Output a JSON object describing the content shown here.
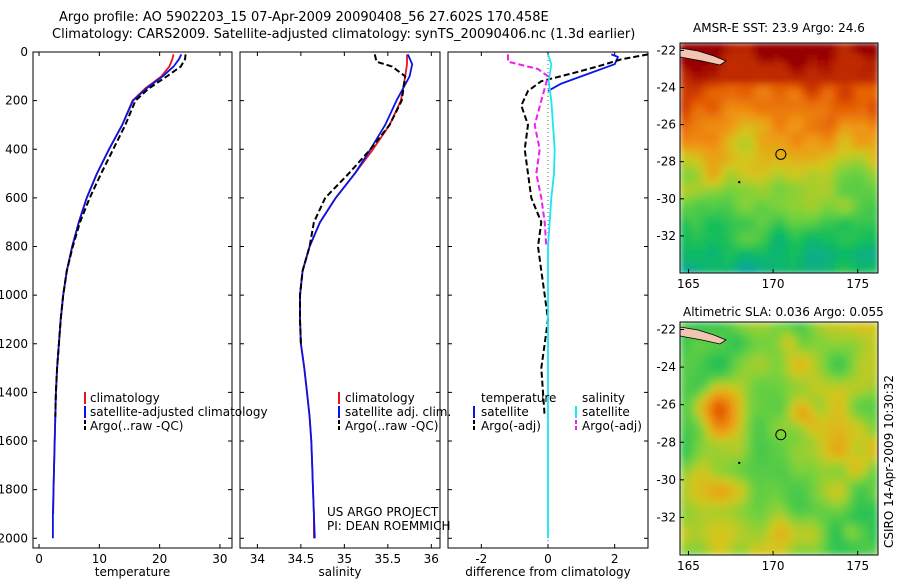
{
  "titles": {
    "line1": "Argo profile: AO 5902203_15 07-Apr-2009 20090408_56 27.602S 170.458E",
    "line2": "Climatology: CARS2009. Satellite-adjusted climatology: synTS_20090406.nc (1.3d earlier)"
  },
  "credits": {
    "project": "US ARGO PROJECT",
    "pi": "PI: DEAN ROEMMICH",
    "stamp": "CSIRO 14-Apr-2009 10:30:32"
  },
  "colors": {
    "climatology": "#e8141e",
    "satellite": "#0a14e6",
    "argo": "#000000",
    "sat_diff": "#18e6f0",
    "argo_adj_diff": "#f01ef0"
  },
  "chart_data": [
    {
      "type": "line",
      "id": "temperature",
      "xlabel": "temperature",
      "xlim": [
        -1,
        32
      ],
      "ylim": [
        2040,
        0
      ],
      "y_reversed": true,
      "xticks": [
        0,
        10,
        20,
        30
      ],
      "yticks": [
        0,
        200,
        400,
        600,
        800,
        1000,
        1200,
        1400,
        1600,
        1800,
        2000
      ],
      "legend": [
        "climatology",
        "satellite-adjusted climatology",
        "Argo(..raw -QC)"
      ],
      "series": [
        {
          "name": "climatology",
          "key": "climatology",
          "style": "solid",
          "points": [
            [
              22.3,
              10
            ],
            [
              22.1,
              30
            ],
            [
              21.6,
              60
            ],
            [
              20.3,
              100
            ],
            [
              17.6,
              150
            ],
            [
              15.5,
              200
            ],
            [
              13.8,
              300
            ],
            [
              11.6,
              400
            ],
            [
              9.6,
              500
            ],
            [
              7.9,
              600
            ],
            [
              6.6,
              700
            ],
            [
              5.5,
              800
            ],
            [
              4.6,
              900
            ],
            [
              4.0,
              1000
            ],
            [
              3.6,
              1100
            ],
            [
              3.3,
              1200
            ],
            [
              3.0,
              1300
            ],
            [
              2.8,
              1400
            ],
            [
              2.7,
              1500
            ],
            [
              2.6,
              1600
            ],
            [
              2.5,
              1700
            ],
            [
              2.4,
              1800
            ],
            [
              2.35,
              1900
            ]
          ]
        },
        {
          "name": "satellite-adjusted climatology",
          "key": "satellite",
          "style": "solid",
          "points": [
            [
              23.6,
              10
            ],
            [
              23.2,
              30
            ],
            [
              22.3,
              60
            ],
            [
              20.5,
              100
            ],
            [
              17.8,
              150
            ],
            [
              15.6,
              200
            ],
            [
              13.8,
              300
            ],
            [
              11.6,
              400
            ],
            [
              9.6,
              500
            ],
            [
              7.9,
              600
            ],
            [
              6.6,
              700
            ],
            [
              5.5,
              800
            ],
            [
              4.6,
              900
            ],
            [
              4.0,
              1000
            ],
            [
              3.6,
              1100
            ],
            [
              3.3,
              1200
            ],
            [
              3.0,
              1300
            ],
            [
              2.8,
              1400
            ],
            [
              2.7,
              1500
            ],
            [
              2.6,
              1600
            ],
            [
              2.5,
              1700
            ],
            [
              2.4,
              1800
            ],
            [
              2.3,
              1900
            ],
            [
              2.3,
              2000
            ]
          ]
        },
        {
          "name": "Argo(..raw -QC)",
          "key": "argo",
          "style": "dash",
          "points": [
            [
              24.3,
              10
            ],
            [
              24.2,
              30
            ],
            [
              23.5,
              60
            ],
            [
              21.2,
              100
            ],
            [
              18.2,
              150
            ],
            [
              16.0,
              200
            ],
            [
              14.3,
              300
            ],
            [
              12.3,
              400
            ],
            [
              10.3,
              500
            ],
            [
              8.4,
              600
            ],
            [
              6.8,
              700
            ],
            [
              5.6,
              800
            ],
            [
              4.6,
              900
            ],
            [
              4.0,
              1000
            ],
            [
              3.6,
              1100
            ],
            [
              3.3,
              1200
            ],
            [
              3.0,
              1300
            ],
            [
              2.8,
              1400
            ],
            [
              2.7,
              1500
            ]
          ]
        }
      ]
    },
    {
      "type": "line",
      "id": "salinity",
      "xlabel": "salinity",
      "xlim": [
        33.8,
        36.1
      ],
      "ylim": [
        2040,
        0
      ],
      "y_reversed": true,
      "xticks": [
        34,
        34.5,
        35,
        35.5,
        36
      ],
      "legend": [
        "climatology",
        "satellite adj. clim.",
        "Argo(..raw -QC)"
      ],
      "series": [
        {
          "name": "climatology",
          "key": "climatology",
          "style": "solid",
          "points": [
            [
              35.72,
              10
            ],
            [
              35.72,
              50
            ],
            [
              35.7,
              100
            ],
            [
              35.65,
              200
            ],
            [
              35.52,
              300
            ],
            [
              35.33,
              400
            ],
            [
              35.12,
              500
            ],
            [
              34.9,
              600
            ],
            [
              34.72,
              700
            ],
            [
              34.6,
              800
            ],
            [
              34.52,
              900
            ],
            [
              34.49,
              1000
            ],
            [
              34.49,
              1100
            ],
            [
              34.5,
              1200
            ],
            [
              34.54,
              1300
            ],
            [
              34.57,
              1400
            ],
            [
              34.6,
              1500
            ],
            [
              34.62,
              1600
            ],
            [
              34.63,
              1700
            ],
            [
              34.64,
              1800
            ],
            [
              34.65,
              1900
            ],
            [
              34.65,
              2000
            ]
          ]
        },
        {
          "name": "satellite adj. clim.",
          "key": "satellite",
          "style": "solid",
          "points": [
            [
              35.73,
              10
            ],
            [
              35.78,
              50
            ],
            [
              35.75,
              100
            ],
            [
              35.6,
              200
            ],
            [
              35.47,
              300
            ],
            [
              35.3,
              400
            ],
            [
              35.12,
              500
            ],
            [
              34.9,
              600
            ],
            [
              34.72,
              700
            ],
            [
              34.6,
              800
            ],
            [
              34.52,
              900
            ],
            [
              34.49,
              1000
            ],
            [
              34.49,
              1100
            ],
            [
              34.5,
              1200
            ],
            [
              34.54,
              1300
            ],
            [
              34.57,
              1400
            ],
            [
              34.6,
              1500
            ],
            [
              34.62,
              1600
            ],
            [
              34.63,
              1700
            ],
            [
              34.64,
              1800
            ],
            [
              34.65,
              1900
            ],
            [
              34.66,
              2000
            ]
          ]
        },
        {
          "name": "Argo(..raw -QC)",
          "key": "argo",
          "style": "dash",
          "points": [
            [
              35.35,
              10
            ],
            [
              35.37,
              40
            ],
            [
              35.55,
              60
            ],
            [
              35.7,
              100
            ],
            [
              35.66,
              200
            ],
            [
              35.52,
              300
            ],
            [
              35.3,
              400
            ],
            [
              35.05,
              500
            ],
            [
              34.78,
              600
            ],
            [
              34.65,
              700
            ],
            [
              34.6,
              800
            ],
            [
              34.52,
              900
            ],
            [
              34.49,
              1000
            ],
            [
              34.49,
              1100
            ],
            [
              34.5,
              1200
            ]
          ]
        }
      ]
    },
    {
      "type": "line",
      "id": "difference",
      "xlabel": "difference from climatology",
      "xlim": [
        -3,
        3
      ],
      "ylim": [
        2040,
        0
      ],
      "y_reversed": true,
      "xticks": [
        -2,
        0,
        2
      ],
      "legend_temperature": {
        "heading": "temperature",
        "items": [
          "satellite",
          "Argo(-adj)"
        ]
      },
      "legend_salinity": {
        "heading": "salinity",
        "items": [
          "satellite",
          "Argo(-adj)"
        ]
      },
      "series": [
        {
          "name": "satellite",
          "key": "satellite",
          "style": "solid",
          "variable": "temperature",
          "points": [
            [
              0.0,
              160
            ],
            [
              0.4,
              130
            ],
            [
              1.2,
              90
            ],
            [
              2.0,
              50
            ],
            [
              2.1,
              20
            ],
            [
              1.9,
              10
            ]
          ]
        },
        {
          "name": "Argo(-adj)",
          "key": "argo",
          "style": "dash",
          "variable": "temperature",
          "points": [
            [
              3.0,
              10
            ],
            [
              2.2,
              30
            ],
            [
              1.6,
              55
            ],
            [
              0.8,
              85
            ],
            [
              -0.2,
              120
            ],
            [
              -0.6,
              160
            ],
            [
              -0.8,
              220
            ],
            [
              -0.6,
              300
            ],
            [
              -0.7,
              400
            ],
            [
              -0.6,
              500
            ],
            [
              -0.5,
              600
            ],
            [
              -0.2,
              700
            ],
            [
              -0.3,
              800
            ],
            [
              -0.2,
              900
            ],
            [
              -0.1,
              1000
            ],
            [
              0.0,
              1100
            ],
            [
              -0.1,
              1200
            ],
            [
              -0.2,
              1300
            ],
            [
              -0.15,
              1400
            ],
            [
              -0.1,
              1500
            ]
          ]
        },
        {
          "name": "satellite",
          "key": "sat_diff",
          "style": "solid",
          "variable": "salinity",
          "points": [
            [
              0.0,
              10
            ],
            [
              0.1,
              50
            ],
            [
              0.02,
              120
            ],
            [
              0.1,
              200
            ],
            [
              0.15,
              300
            ],
            [
              0.2,
              400
            ],
            [
              0.18,
              500
            ],
            [
              0.1,
              600
            ],
            [
              0.05,
              700
            ],
            [
              0.0,
              800
            ],
            [
              0.0,
              1000
            ],
            [
              0.0,
              1200
            ],
            [
              0.0,
              1400
            ],
            [
              0.0,
              1600
            ],
            [
              0.0,
              1800
            ],
            [
              0.0,
              2000
            ]
          ]
        },
        {
          "name": "Argo(-adj)",
          "key": "argo_adj_diff",
          "style": "dash",
          "variable": "salinity",
          "points": [
            [
              -1.2,
              10
            ],
            [
              -1.2,
              40
            ],
            [
              -0.3,
              70
            ],
            [
              0.0,
              100
            ],
            [
              -0.2,
              200
            ],
            [
              -0.4,
              300
            ],
            [
              -0.25,
              400
            ],
            [
              -0.35,
              500
            ],
            [
              -0.2,
              600
            ],
            [
              -0.1,
              700
            ],
            [
              -0.05,
              800
            ]
          ]
        }
      ]
    },
    {
      "type": "heatmap",
      "id": "sst",
      "title": "AMSR-E SST: 23.9 Argo: 24.6",
      "xlim": [
        164.5,
        176.2
      ],
      "ylim": [
        -34,
        -21.6
      ],
      "xticks": [
        165,
        170,
        175
      ],
      "yticks": [
        -22,
        -24,
        -26,
        -28,
        -30,
        -32
      ],
      "marker": [
        170.458,
        -27.602
      ]
    },
    {
      "type": "heatmap",
      "id": "sla",
      "title": "Altimetric SLA: 0.036 Argo: 0.055",
      "xlim": [
        164.5,
        176.2
      ],
      "ylim": [
        -34,
        -21.6
      ],
      "xticks": [
        165,
        170,
        175
      ],
      "yticks": [
        -22,
        -24,
        -26,
        -28,
        -30,
        -32
      ],
      "marker": [
        170.458,
        -27.602
      ]
    }
  ]
}
